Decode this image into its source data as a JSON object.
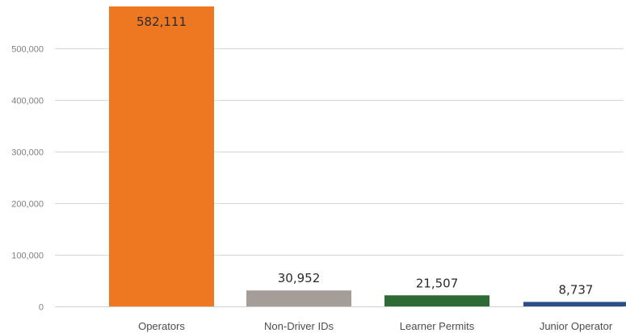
{
  "chart_data": {
    "type": "bar",
    "categories": [
      "Operators",
      "Non-Driver IDs",
      "Learner Permits",
      "Junior Operator"
    ],
    "values": [
      582111,
      30952,
      21507,
      8737
    ],
    "data_labels": [
      "582,111",
      "30,952",
      "21,507",
      "8,737"
    ],
    "colors": [
      "#ee7722",
      "#a59e98",
      "#2e6b34",
      "#2a4f86"
    ],
    "yticks": [
      0,
      100000,
      200000,
      300000,
      400000,
      500000
    ],
    "ytick_labels": [
      "0",
      "100,000",
      "200,000",
      "300,000",
      "400,000",
      "500,000"
    ],
    "ylim": [
      0,
      582111
    ],
    "grid": true,
    "title": "",
    "xlabel": "",
    "ylabel": ""
  }
}
